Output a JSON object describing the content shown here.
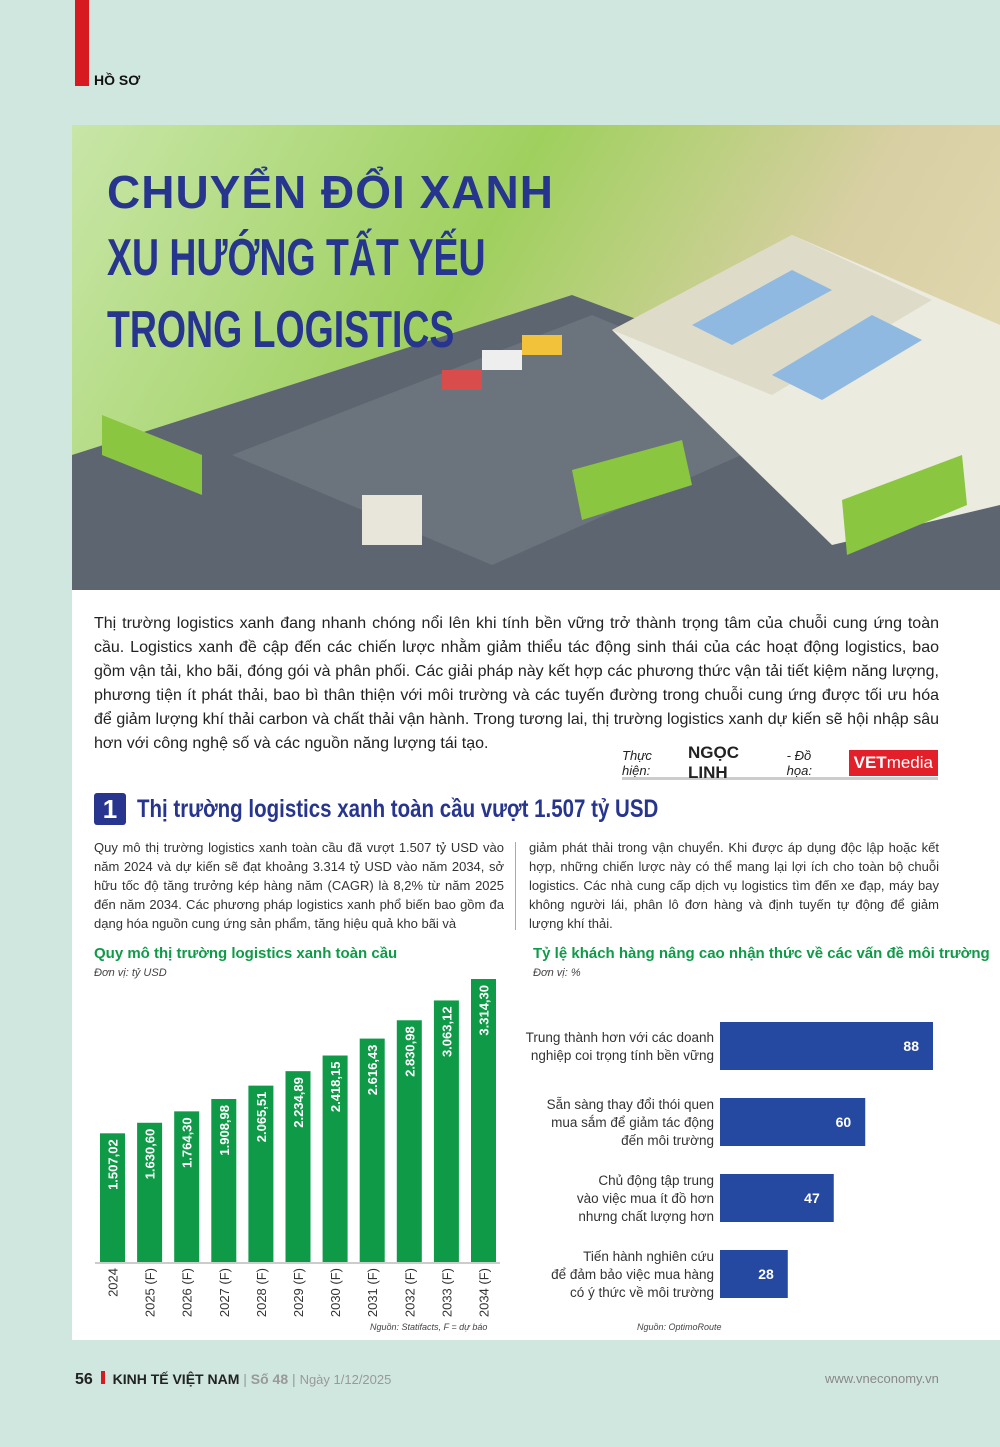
{
  "section": "HỒ SƠ",
  "title": {
    "line1": "CHUYỂN ĐỔI XANH",
    "line2": "XU HƯỚNG TẤT YẾU",
    "line3": "TRONG LOGISTICS"
  },
  "intro": "Thị trường logistics xanh đang nhanh chóng nổi lên khi tính bền vững trở thành trọng tâm của chuỗi cung ứng toàn cầu. Logistics xanh đề cập đến các chiến lược nhằm giảm thiểu tác động sinh thái của các hoạt động logistics, bao gồm vận tải, kho bãi, đóng gói và phân phối. Các giải pháp này kết hợp các phương thức vận tải tiết kiệm năng lượng, phương tiện ít phát thải, bao bì thân thiện với môi trường và các tuyến đường trong chuỗi cung ứng được tối ưu hóa để giảm lượng khí thải carbon và chất thải vận hành. Trong tương lai, thị trường logistics xanh dự kiến sẽ hội nhập sâu hơn với công nghệ số và các nguồn năng lượng tái tạo.",
  "credit": {
    "label": "Thực hiện:",
    "author": "NGỌC LINH",
    "graphics_label": "- Đồ họa:",
    "logo_bold": "VET",
    "logo_light": "media"
  },
  "heading1": {
    "number": "1",
    "text": "Thị trường logistics xanh toàn cầu vượt 1.507 tỷ USD"
  },
  "body": {
    "col1": "Quy mô thị trường logistics xanh toàn cầu đã vượt 1.507 tỷ USD vào năm 2024 và dự kiến sẽ đạt khoảng 3.314 tỷ USD vào năm 2034, sở hữu tốc độ tăng trưởng kép hàng năm (CAGR) là 8,2% từ năm 2025 đến năm 2034. Các phương pháp logistics xanh phổ biến bao gồm đa dạng hóa nguồn cung ứng sản phẩm, tăng hiệu quả kho bãi và",
    "col2": "giảm phát thải trong vận chuyển. Khi được áp dụng độc lập hoặc kết hợp, những chiến lược này có thể mang lại lợi ích cho toàn bộ chuỗi logistics. Các nhà cung cấp dịch vụ logistics tìm đến xe đạp, máy bay không người lái, phân lô đơn hàng và định tuyến tự động để giảm lượng khí thải."
  },
  "chart_data": [
    {
      "type": "bar",
      "title": "Quy mô thị trường logistics xanh toàn cầu",
      "unit": "Đơn vị: tỷ USD",
      "source": "Nguồn: Statifacts, F = dự báo",
      "color": "#0f9a48",
      "categories": [
        "2024",
        "2025 (F)",
        "2026 (F)",
        "2027 (F)",
        "2028 (F)",
        "2029 (F)",
        "2030 (F)",
        "2031 (F)",
        "2032 (F)",
        "2033 (F)",
        "2034 (F)"
      ],
      "values": [
        1507.02,
        1630.6,
        1764.3,
        1908.98,
        2065.51,
        2234.89,
        2418.15,
        2616.43,
        2830.98,
        3063.12,
        3314.3
      ],
      "labels": [
        "1.507,02",
        "1.630,60",
        "1.764,30",
        "1.908,98",
        "2.065,51",
        "2.234,89",
        "2.418,15",
        "2.616,43",
        "2.830,98",
        "3.063,12",
        "3.314,30"
      ]
    },
    {
      "type": "bar",
      "orientation": "horizontal",
      "title": "Tỷ lệ khách hàng nâng cao nhận thức về các vấn đề môi trường",
      "unit": "Đơn vị: %",
      "source": "Nguồn: OptimoRoute",
      "color": "#2548a0",
      "categories": [
        "Trung thành hơn với các doanh nghiệp coi trọng tính bền vững",
        "Sẵn sàng thay đổi thói quen mua sắm để giảm tác động đến môi trường",
        "Chủ động tập trung vào việc mua ít đồ hơn nhưng chất lượng hơn",
        "Tiến hành nghiên cứu để đảm bảo việc mua hàng có ý thức về môi trường"
      ],
      "category_lines": [
        [
          "Trung thành hơn với các doanh",
          "nghiệp coi trọng tính bền vững"
        ],
        [
          "Sẵn sàng thay đổi thói quen",
          "mua sắm để giảm tác động",
          "đến môi trường"
        ],
        [
          "Chủ động tập trung",
          "vào việc mua ít đồ hơn",
          "nhưng chất lượng hơn"
        ],
        [
          "Tiến hành nghiên cứu",
          "để đảm bảo việc mua hàng",
          "có ý thức về môi trường"
        ]
      ],
      "values": [
        88,
        60,
        47,
        28
      ]
    }
  ],
  "footer": {
    "page": "56",
    "magazine": "KINH TẾ VIỆT NAM",
    "issue": "Số 48",
    "date": "Ngày 1/12/2025",
    "website": "www.vneconomy.vn"
  }
}
